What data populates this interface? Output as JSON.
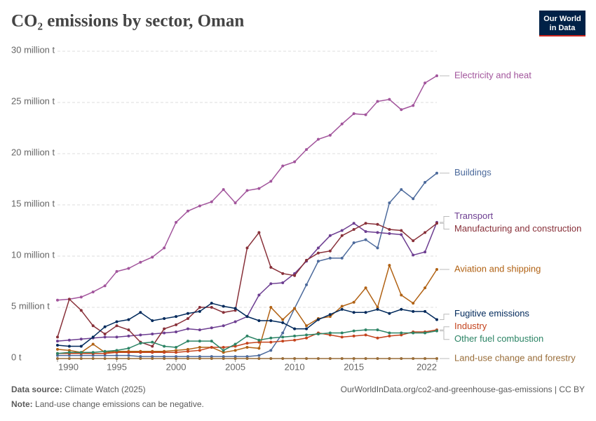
{
  "chart_data": {
    "type": "line",
    "title": "CO₂ emissions by sector, Oman",
    "x": [
      1990,
      1991,
      1992,
      1993,
      1994,
      1995,
      1996,
      1997,
      1998,
      1999,
      2000,
      2001,
      2002,
      2003,
      2004,
      2005,
      2006,
      2007,
      2008,
      2009,
      2010,
      2011,
      2012,
      2013,
      2014,
      2015,
      2016,
      2017,
      2018,
      2019,
      2020,
      2021,
      2022
    ],
    "xlim": [
      1990,
      2022
    ],
    "xticks": [
      1990,
      1995,
      2000,
      2005,
      2010,
      2015,
      2022
    ],
    "ylim": [
      0,
      30
    ],
    "yticks": [
      {
        "value": 0,
        "label": "0 t"
      },
      {
        "value": 5,
        "label": "5 million t"
      },
      {
        "value": 10,
        "label": "10 million t"
      },
      {
        "value": 15,
        "label": "15 million t"
      },
      {
        "value": 20,
        "label": "20 million t"
      },
      {
        "value": 25,
        "label": "25 million t"
      },
      {
        "value": 30,
        "label": "30 million t"
      }
    ],
    "grid": true,
    "series": [
      {
        "name": "Electricity and heat",
        "color": "#a2559c",
        "values": [
          5.7,
          5.8,
          6.0,
          6.5,
          7.1,
          8.5,
          8.8,
          9.4,
          9.9,
          10.8,
          13.3,
          14.4,
          14.9,
          15.3,
          16.5,
          15.2,
          16.4,
          16.6,
          17.3,
          18.8,
          19.2,
          20.4,
          21.4,
          21.8,
          22.9,
          23.9,
          23.8,
          25.1,
          25.3,
          24.3,
          24.7,
          26.9,
          27.6
        ]
      },
      {
        "name": "Buildings",
        "color": "#4c6a9c",
        "values": [
          0.3,
          0.3,
          0.3,
          0.3,
          0.3,
          0.3,
          0.3,
          0.2,
          0.2,
          0.2,
          0.2,
          0.2,
          0.2,
          0.2,
          0.2,
          0.2,
          0.2,
          0.3,
          0.8,
          2.5,
          4.9,
          7.2,
          9.5,
          9.8,
          9.8,
          11.3,
          11.6,
          10.8,
          15.2,
          16.5,
          15.6,
          17.2,
          18.1
        ]
      },
      {
        "name": "Transport",
        "color": "#6d3e91",
        "values": [
          1.7,
          1.8,
          1.9,
          2.0,
          2.1,
          2.1,
          2.2,
          2.3,
          2.4,
          2.5,
          2.6,
          2.9,
          2.8,
          3.0,
          3.2,
          3.6,
          4.1,
          6.2,
          7.3,
          7.4,
          8.3,
          9.5,
          10.8,
          12.0,
          12.5,
          13.2,
          12.4,
          12.3,
          12.2,
          12.1,
          10.1,
          10.4,
          13.3
        ]
      },
      {
        "name": "Manufacturing and construction",
        "color": "#883039",
        "values": [
          2.1,
          5.8,
          4.7,
          3.2,
          2.4,
          3.2,
          2.8,
          1.6,
          1.2,
          2.9,
          3.3,
          3.9,
          5.0,
          5.0,
          4.5,
          4.7,
          10.8,
          12.3,
          8.9,
          8.3,
          8.1,
          9.6,
          10.3,
          10.5,
          12.0,
          12.6,
          13.2,
          13.1,
          12.6,
          12.5,
          11.5,
          12.3,
          13.2
        ]
      },
      {
        "name": "Aviation and shipping",
        "color": "#b16214",
        "values": [
          0.9,
          0.8,
          0.6,
          1.4,
          0.6,
          0.7,
          0.7,
          0.7,
          0.7,
          0.7,
          0.8,
          0.9,
          1.1,
          1.1,
          0.6,
          0.8,
          1.1,
          1.0,
          5.0,
          3.8,
          4.9,
          3.2,
          3.9,
          4.1,
          5.1,
          5.5,
          6.9,
          5.0,
          9.1,
          6.2,
          5.4,
          6.9,
          8.7
        ]
      },
      {
        "name": "Fugitive emissions",
        "color": "#00295b",
        "values": [
          1.3,
          1.2,
          1.2,
          2.1,
          3.1,
          3.6,
          3.8,
          4.5,
          3.7,
          3.9,
          4.1,
          4.4,
          4.6,
          5.4,
          5.1,
          4.9,
          4.1,
          3.7,
          3.7,
          3.5,
          2.9,
          2.9,
          3.8,
          4.3,
          4.8,
          4.5,
          4.5,
          4.8,
          4.4,
          4.8,
          4.6,
          4.6,
          3.8
        ]
      },
      {
        "name": "Industry",
        "color": "#c4431d",
        "values": [
          0.5,
          0.5,
          0.5,
          0.5,
          0.5,
          0.6,
          0.6,
          0.6,
          0.6,
          0.6,
          0.6,
          0.7,
          0.8,
          1.1,
          1.1,
          1.2,
          1.5,
          1.6,
          1.6,
          1.7,
          1.8,
          2.0,
          2.5,
          2.3,
          2.1,
          2.2,
          2.3,
          2.0,
          2.2,
          2.3,
          2.6,
          2.6,
          2.8
        ]
      },
      {
        "name": "Other fuel combustion",
        "color": "#2c8465",
        "values": [
          0.5,
          0.6,
          0.6,
          0.6,
          0.7,
          0.8,
          1.0,
          1.5,
          1.6,
          1.2,
          1.1,
          1.7,
          1.7,
          1.7,
          0.8,
          1.4,
          2.2,
          1.8,
          2.0,
          2.1,
          2.2,
          2.3,
          2.4,
          2.5,
          2.5,
          2.7,
          2.8,
          2.8,
          2.5,
          2.5,
          2.5,
          2.5,
          2.7
        ]
      },
      {
        "name": "Land-use change and forestry",
        "color": "#996d39",
        "values": [
          0,
          0,
          0,
          0,
          0,
          0,
          0,
          0,
          0,
          0,
          0,
          0,
          0,
          0,
          0,
          0,
          0,
          0,
          0,
          0,
          0,
          0,
          0,
          0,
          0,
          0,
          0,
          0,
          0,
          0,
          0,
          0,
          0
        ]
      }
    ]
  },
  "logo": {
    "line1": "Our World",
    "line2": "in Data"
  },
  "footer": {
    "source_label": "Data source:",
    "source": "Climate Watch (2025)",
    "url": "OurWorldInData.org/co2-and-greenhouse-gas-emissions | CC BY",
    "note_label": "Note:",
    "note": "Land-use change emissions can be negative."
  }
}
